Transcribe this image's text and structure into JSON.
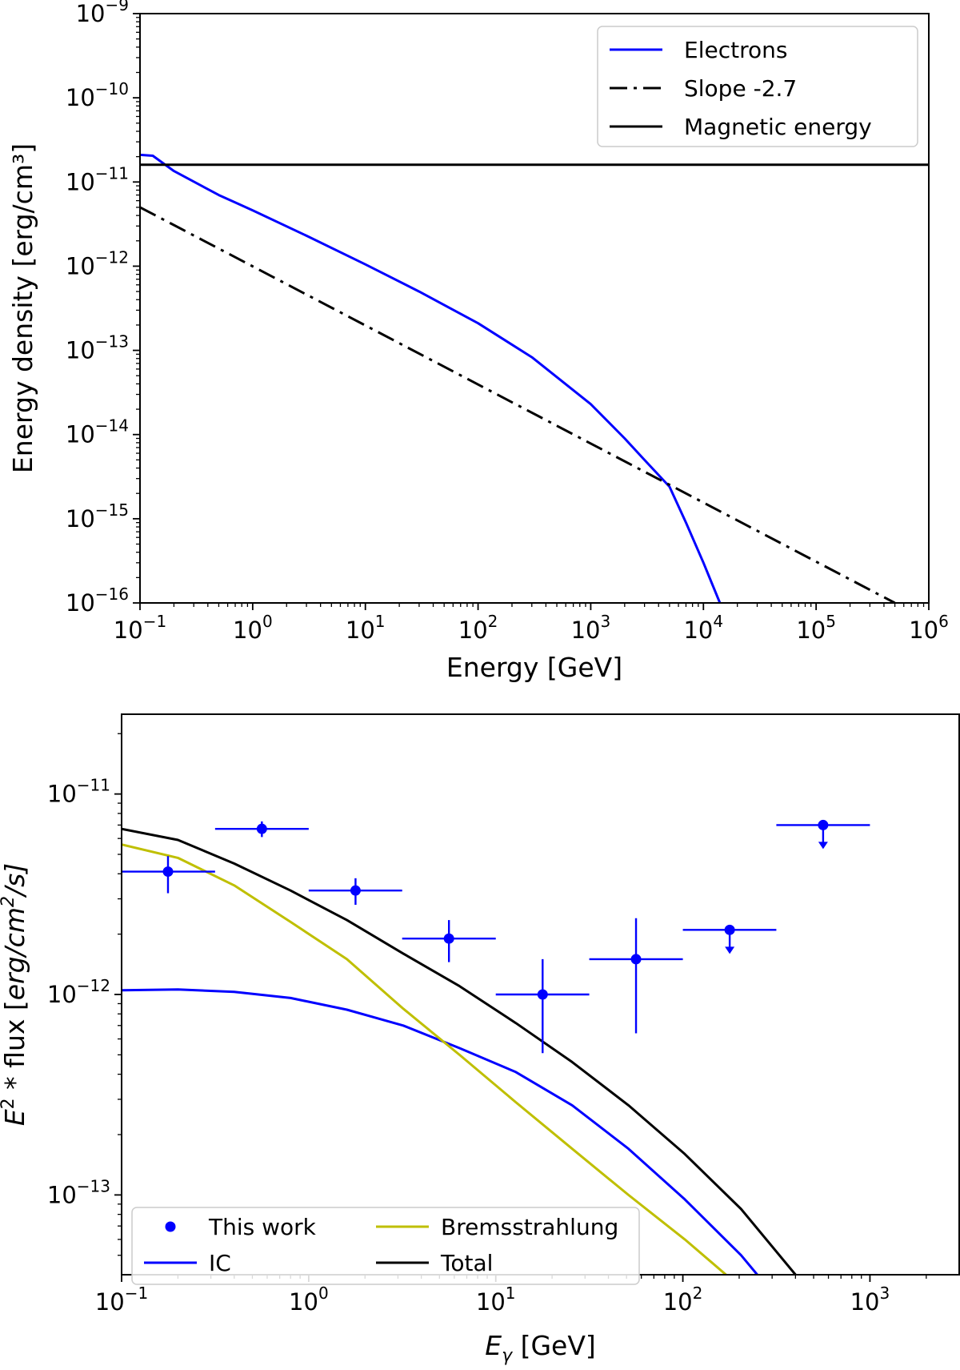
{
  "chart_data": [
    {
      "type": "line",
      "xscale": "log",
      "yscale": "log",
      "xlim": [
        0.1,
        1000000
      ],
      "ylim": [
        1e-16,
        1e-09
      ],
      "xlabel": "Energy [GeV]",
      "ylabel": "Energy density [erg/cm³]",
      "xticks": [
        {
          "base": "10",
          "exp": "−1",
          "value": 0.1
        },
        {
          "base": "10",
          "exp": "0",
          "value": 1
        },
        {
          "base": "10",
          "exp": "1",
          "value": 10
        },
        {
          "base": "10",
          "exp": "2",
          "value": 100
        },
        {
          "base": "10",
          "exp": "3",
          "value": 1000
        },
        {
          "base": "10",
          "exp": "4",
          "value": 10000
        },
        {
          "base": "10",
          "exp": "5",
          "value": 100000
        },
        {
          "base": "10",
          "exp": "6",
          "value": 1000000
        }
      ],
      "yticks": [
        {
          "base": "10",
          "exp": "−16",
          "value": 1e-16
        },
        {
          "base": "10",
          "exp": "−15",
          "value": 1e-15
        },
        {
          "base": "10",
          "exp": "−14",
          "value": 1e-14
        },
        {
          "base": "10",
          "exp": "−13",
          "value": 1e-13
        },
        {
          "base": "10",
          "exp": "−12",
          "value": 1e-12
        },
        {
          "base": "10",
          "exp": "−11",
          "value": 1e-11
        },
        {
          "base": "10",
          "exp": "−10",
          "value": 1e-10
        },
        {
          "base": "10",
          "exp": "−9",
          "value": 1e-09
        }
      ],
      "legend": {
        "position": "top-right",
        "entries": [
          "Electrons",
          "Slope -2.7",
          "Magnetic energy"
        ]
      },
      "series": [
        {
          "name": "Electrons",
          "color": "#0000ff",
          "style": "solid",
          "x": [
            0.1,
            0.13,
            0.2,
            0.5,
            1,
            3,
            10,
            30,
            100,
            300,
            1000,
            2000,
            3000,
            5000,
            7000,
            10000,
            14000
          ],
          "y": [
            2.1e-11,
            2.05e-11,
            1.35e-11,
            7e-12,
            4.6e-12,
            2.3e-12,
            1.05e-12,
            5e-13,
            2.1e-13,
            8.3e-14,
            2.3e-14,
            9e-15,
            5e-15,
            2.4e-15,
            9e-16,
            3e-16,
            1e-16
          ]
        },
        {
          "name": "Slope -2.7",
          "color": "#000000",
          "style": "dashdot",
          "x": [
            0.1,
            500000
          ],
          "y": [
            5e-12,
            1e-16
          ]
        },
        {
          "name": "Magnetic energy",
          "color": "#000000",
          "style": "solid",
          "x": [
            0.1,
            1000000
          ],
          "y": [
            1.6e-11,
            1.6e-11
          ]
        }
      ]
    },
    {
      "type": "line",
      "xscale": "log",
      "yscale": "log",
      "xlim": [
        0.1,
        3000
      ],
      "ylim": [
        4e-14,
        2.5e-11
      ],
      "xlabel": {
        "symbol": "E",
        "sub": "γ",
        "unit": " [GeV]"
      },
      "ylabel": {
        "pre": "E",
        "sup1": "2",
        "mid": " * flux [",
        "unit": "erg/cm",
        "sup2": "2",
        "post": "/s]"
      },
      "xticks": [
        {
          "base": "10",
          "exp": "−1",
          "value": 0.1
        },
        {
          "base": "10",
          "exp": "0",
          "value": 1
        },
        {
          "base": "10",
          "exp": "1",
          "value": 10
        },
        {
          "base": "10",
          "exp": "2",
          "value": 100
        },
        {
          "base": "10",
          "exp": "3",
          "value": 1000
        }
      ],
      "yticks": [
        {
          "base": "10",
          "exp": "−13",
          "value": 1e-13
        },
        {
          "base": "10",
          "exp": "−12",
          "value": 1e-12
        },
        {
          "base": "10",
          "exp": "−11",
          "value": 1e-11
        }
      ],
      "legend": {
        "position": "bottom-left",
        "entries": [
          "This work",
          "Bremsstrahlung",
          "IC",
          "Total"
        ]
      },
      "points": {
        "name": "This work",
        "color": "#0000ff",
        "items": [
          {
            "x": 0.177,
            "y": 4.1e-12,
            "xlo": 0.1,
            "xhi": 0.316,
            "ylo": 3.2e-12,
            "yhi": 4.9e-12,
            "ul": false
          },
          {
            "x": 0.562,
            "y": 6.7e-12,
            "xlo": 0.316,
            "xhi": 1.0,
            "ylo": 6.1e-12,
            "yhi": 7.3e-12,
            "ul": false
          },
          {
            "x": 1.78,
            "y": 3.3e-12,
            "xlo": 1.0,
            "xhi": 3.16,
            "ylo": 2.8e-12,
            "yhi": 3.8e-12,
            "ul": false
          },
          {
            "x": 5.62,
            "y": 1.9e-12,
            "xlo": 3.16,
            "xhi": 10.0,
            "ylo": 1.45e-12,
            "yhi": 2.35e-12,
            "ul": false
          },
          {
            "x": 17.8,
            "y": 1e-12,
            "xlo": 10.0,
            "xhi": 31.6,
            "ylo": 5.1e-13,
            "yhi": 1.5e-12,
            "ul": false
          },
          {
            "x": 56.2,
            "y": 1.5e-12,
            "xlo": 31.6,
            "xhi": 100.0,
            "ylo": 6.4e-13,
            "yhi": 2.4e-12,
            "ul": false
          },
          {
            "x": 178,
            "y": 2.1e-12,
            "xlo": 100.0,
            "xhi": 316,
            "ylo": null,
            "yhi": null,
            "ul": true
          },
          {
            "x": 562,
            "y": 7e-12,
            "xlo": 316,
            "xhi": 1000,
            "ylo": null,
            "yhi": null,
            "ul": true
          }
        ]
      },
      "series": [
        {
          "name": "IC",
          "color": "#0000ff",
          "style": "solid",
          "x": [
            0.1,
            0.2,
            0.4,
            0.8,
            1.6,
            3.2,
            6.4,
            12.8,
            25.6,
            51.2,
            102.4,
            204.8,
            250
          ],
          "y": [
            1.05e-12,
            1.06e-12,
            1.03e-12,
            9.6e-13,
            8.4e-13,
            7e-13,
            5.4e-13,
            4.1e-13,
            2.8e-13,
            1.7e-13,
            9.5e-14,
            5e-14,
            4e-14
          ]
        },
        {
          "name": "Bremsstrahlung",
          "color": "#bfbf00",
          "style": "solid",
          "x": [
            0.1,
            0.2,
            0.4,
            0.8,
            1.6,
            3.2,
            6.4,
            12.8,
            25.6,
            51.2,
            102.4,
            170
          ],
          "y": [
            5.6e-12,
            4.8e-12,
            3.5e-12,
            2.3e-12,
            1.5e-12,
            8.5e-13,
            5e-13,
            2.9e-13,
            1.7e-13,
            1e-13,
            6e-14,
            4e-14
          ]
        },
        {
          "name": "Total",
          "color": "#000000",
          "style": "solid",
          "x": [
            0.1,
            0.2,
            0.4,
            0.8,
            1.6,
            3.2,
            6.4,
            12.8,
            25.6,
            51.2,
            102.4,
            204.8,
            400
          ],
          "y": [
            6.7e-12,
            5.9e-12,
            4.5e-12,
            3.3e-12,
            2.35e-12,
            1.6e-12,
            1.1e-12,
            7.2e-13,
            4.6e-13,
            2.8e-13,
            1.6e-13,
            8.5e-14,
            4e-14
          ]
        }
      ]
    }
  ]
}
